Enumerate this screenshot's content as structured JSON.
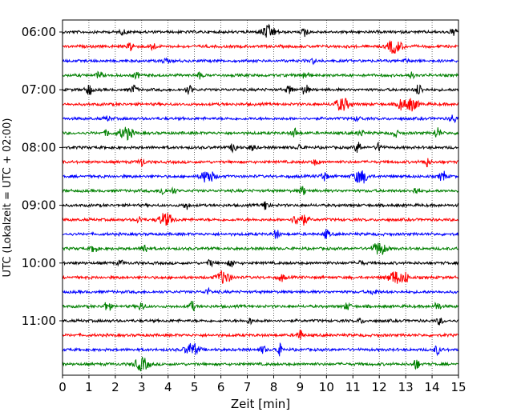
{
  "chart_data": {
    "type": "line",
    "title": "",
    "xlabel": "Zeit  [min]",
    "ylabel": "UTC (Lokalzeit = UTC + 02:00)",
    "xlim": [
      0,
      15
    ],
    "x_ticks": [
      "0",
      "1",
      "2",
      "3",
      "4",
      "5",
      "6",
      "7",
      "8",
      "9",
      "10",
      "11",
      "12",
      "13",
      "14",
      "15"
    ],
    "y_ticks": [
      "06:00",
      "07:00",
      "08:00",
      "09:00",
      "10:00",
      "11:00"
    ],
    "grid": "vertical dotted at each minute",
    "trace_interval_minutes": 15,
    "trace_colors": [
      "#000000",
      "#ff0000",
      "#0000ff",
      "#008000"
    ],
    "traces": [
      {
        "start": "06:00",
        "color": "#000000",
        "events": [
          [
            7.8,
            0.9
          ],
          [
            9.2,
            0.6
          ],
          [
            14.8,
            0.5
          ],
          [
            2.3,
            0.3
          ]
        ]
      },
      {
        "start": "06:15",
        "color": "#ff0000",
        "events": [
          [
            2.6,
            0.7
          ],
          [
            3.4,
            0.6
          ],
          [
            12.6,
            0.9
          ],
          [
            12.5,
            0.4
          ]
        ]
      },
      {
        "start": "06:30",
        "color": "#0000ff",
        "events": [
          [
            3.9,
            0.3
          ],
          [
            9.5,
            0.3
          ],
          [
            13.0,
            0.2
          ]
        ]
      },
      {
        "start": "06:45",
        "color": "#008000",
        "events": [
          [
            1.4,
            0.5
          ],
          [
            2.8,
            0.4
          ],
          [
            5.2,
            0.4
          ],
          [
            9.2,
            0.6
          ],
          [
            13.2,
            0.4
          ]
        ]
      },
      {
        "start": "07:00",
        "color": "#000000",
        "events": [
          [
            1.0,
            0.8
          ],
          [
            2.7,
            0.6
          ],
          [
            4.8,
            0.6
          ],
          [
            8.6,
            0.6
          ],
          [
            9.2,
            0.8
          ],
          [
            13.5,
            0.8
          ]
        ]
      },
      {
        "start": "07:15",
        "color": "#ff0000",
        "events": [
          [
            10.6,
            0.9
          ],
          [
            12.8,
            0.7
          ],
          [
            13.2,
            0.9
          ]
        ]
      },
      {
        "start": "07:30",
        "color": "#0000ff",
        "events": [
          [
            1.7,
            0.3
          ],
          [
            11.2,
            0.3
          ],
          [
            14.8,
            0.6
          ]
        ]
      },
      {
        "start": "07:45",
        "color": "#008000",
        "events": [
          [
            1.7,
            0.4
          ],
          [
            2.4,
            0.9
          ],
          [
            8.8,
            0.6
          ],
          [
            11.3,
            0.4
          ],
          [
            12.6,
            0.5
          ],
          [
            14.2,
            0.8
          ]
        ]
      },
      {
        "start": "08:00",
        "color": "#000000",
        "events": [
          [
            6.5,
            0.8
          ],
          [
            7.2,
            0.4
          ],
          [
            9.0,
            0.4
          ],
          [
            11.2,
            0.8
          ],
          [
            12.0,
            0.6
          ]
        ]
      },
      {
        "start": "08:15",
        "color": "#ff0000",
        "events": [
          [
            3.0,
            0.5
          ],
          [
            9.6,
            0.4
          ],
          [
            13.8,
            0.6
          ]
        ]
      },
      {
        "start": "08:30",
        "color": "#0000ff",
        "events": [
          [
            5.5,
            0.9
          ],
          [
            9.9,
            0.7
          ],
          [
            11.3,
            1.0
          ],
          [
            14.4,
            0.8
          ]
        ]
      },
      {
        "start": "08:45",
        "color": "#008000",
        "events": [
          [
            3.8,
            0.6
          ],
          [
            4.2,
            0.4
          ],
          [
            9.1,
            0.6
          ],
          [
            13.4,
            0.5
          ]
        ]
      },
      {
        "start": "09:00",
        "color": "#000000",
        "events": [
          [
            4.7,
            0.5
          ],
          [
            7.7,
            0.7
          ]
        ]
      },
      {
        "start": "09:15",
        "color": "#ff0000",
        "events": [
          [
            2.9,
            0.4
          ],
          [
            3.9,
            0.9
          ],
          [
            9.0,
            0.9
          ]
        ]
      },
      {
        "start": "09:30",
        "color": "#0000ff",
        "events": [
          [
            8.1,
            0.6
          ],
          [
            10.0,
            0.6
          ]
        ]
      },
      {
        "start": "09:45",
        "color": "#008000",
        "events": [
          [
            1.2,
            0.6
          ],
          [
            3.1,
            0.7
          ],
          [
            12.0,
            0.9
          ]
        ]
      },
      {
        "start": "10:00",
        "color": "#000000",
        "events": [
          [
            2.2,
            0.3
          ],
          [
            5.6,
            0.4
          ],
          [
            6.4,
            0.5
          ],
          [
            11.3,
            0.3
          ]
        ]
      },
      {
        "start": "10:15",
        "color": "#ff0000",
        "events": [
          [
            6.1,
            0.9
          ],
          [
            8.3,
            0.5
          ],
          [
            12.6,
            0.9
          ],
          [
            13.0,
            0.7
          ]
        ]
      },
      {
        "start": "10:30",
        "color": "#0000ff",
        "events": [
          [
            5.5,
            0.4
          ],
          [
            11.8,
            0.4
          ]
        ]
      },
      {
        "start": "10:45",
        "color": "#008000",
        "events": [
          [
            1.7,
            0.8
          ],
          [
            3.0,
            0.6
          ],
          [
            4.9,
            0.7
          ],
          [
            10.8,
            0.5
          ],
          [
            14.2,
            0.6
          ]
        ]
      },
      {
        "start": "11:00",
        "color": "#000000",
        "events": [
          [
            7.1,
            0.4
          ],
          [
            11.3,
            0.3
          ],
          [
            14.3,
            0.5
          ]
        ]
      },
      {
        "start": "11:15",
        "color": "#ff0000",
        "events": [
          [
            9.0,
            0.7
          ]
        ]
      },
      {
        "start": "11:30",
        "color": "#0000ff",
        "events": [
          [
            4.9,
            0.9
          ],
          [
            7.6,
            0.5
          ],
          [
            8.2,
            0.8
          ],
          [
            14.2,
            0.6
          ]
        ]
      },
      {
        "start": "11:45",
        "color": "#008000",
        "events": [
          [
            3.0,
            0.9
          ],
          [
            13.4,
            0.7
          ]
        ]
      }
    ]
  }
}
